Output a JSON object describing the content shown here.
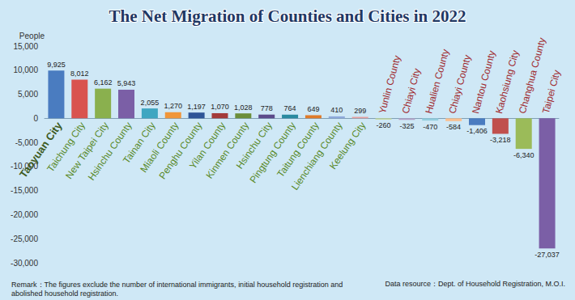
{
  "chart_data": {
    "type": "bar",
    "title": "The Net Migration of Counties and Cities in 2022",
    "ylabel": "People",
    "categories": [
      "Taoyuan City",
      "Taichung City",
      "New Taipei City",
      "Hsinchu County",
      "Tainan City",
      "Miaoli County",
      "Penghu County",
      "Yilan County",
      "Kinmen County",
      "Hsinchu City",
      "Pingtung County",
      "Taitung County",
      "Lienchiang County",
      "Keelung City",
      "Yunlin County",
      "Chiayi City",
      "Hualien County",
      "Chiayi County",
      "Nantou County",
      "Kaohsiung City",
      "Changhua County",
      "Taipei City"
    ],
    "values": [
      9925,
      8012,
      6162,
      5943,
      2055,
      1270,
      1197,
      1070,
      1028,
      778,
      764,
      649,
      410,
      299,
      -260,
      -325,
      -470,
      -584,
      -1406,
      -3218,
      -6340,
      -27037
    ],
    "value_labels": [
      "9,925",
      "8,012",
      "6,162",
      "5,943",
      "2,055",
      "1,270",
      "1,197",
      "1,070",
      "1,028",
      "778",
      "764",
      "649",
      "410",
      "299",
      "-260",
      "-325",
      "-470",
      "-584",
      "-1,406",
      "-3,218",
      "-6,340",
      "-27,037"
    ],
    "colors": [
      "#4a7cc0",
      "#d9534f",
      "#8ab04e",
      "#7b5fa6",
      "#3fa6c1",
      "#f0963a",
      "#2f5597",
      "#a33a3a",
      "#6b8e3a",
      "#5b4a8a",
      "#2a8aa0",
      "#e07b2a",
      "#8ea9db",
      "#e6a0a0",
      "#c5d89a",
      "#b3a2c7",
      "#93cddd",
      "#fac090",
      "#4a7cc0",
      "#c0504d",
      "#9bbb59",
      "#7b5fa6"
    ],
    "ylim": [
      -30000,
      15000
    ],
    "yticks": [
      {
        "value": -30000,
        "label": "-30,000"
      },
      {
        "value": -25000,
        "label": "-25,000"
      },
      {
        "value": -20000,
        "label": "-20,000"
      },
      {
        "value": -15000,
        "label": "-15,000"
      },
      {
        "value": -10000,
        "label": "-10,000"
      },
      {
        "value": -5000,
        "label": "-5,000"
      },
      0,
      {
        "value": 5000,
        "label": "5,000"
      },
      {
        "value": 10000,
        "label": "10,000"
      },
      {
        "value": 15000,
        "label": "15,000"
      }
    ],
    "grid": false,
    "data_labels": true,
    "annotations": [
      "Remark：The figures exclude the number of international immigrants, initial household registration and abolished household registration.",
      "Data resource：Dept. of Household Registration, M.O.I."
    ]
  }
}
